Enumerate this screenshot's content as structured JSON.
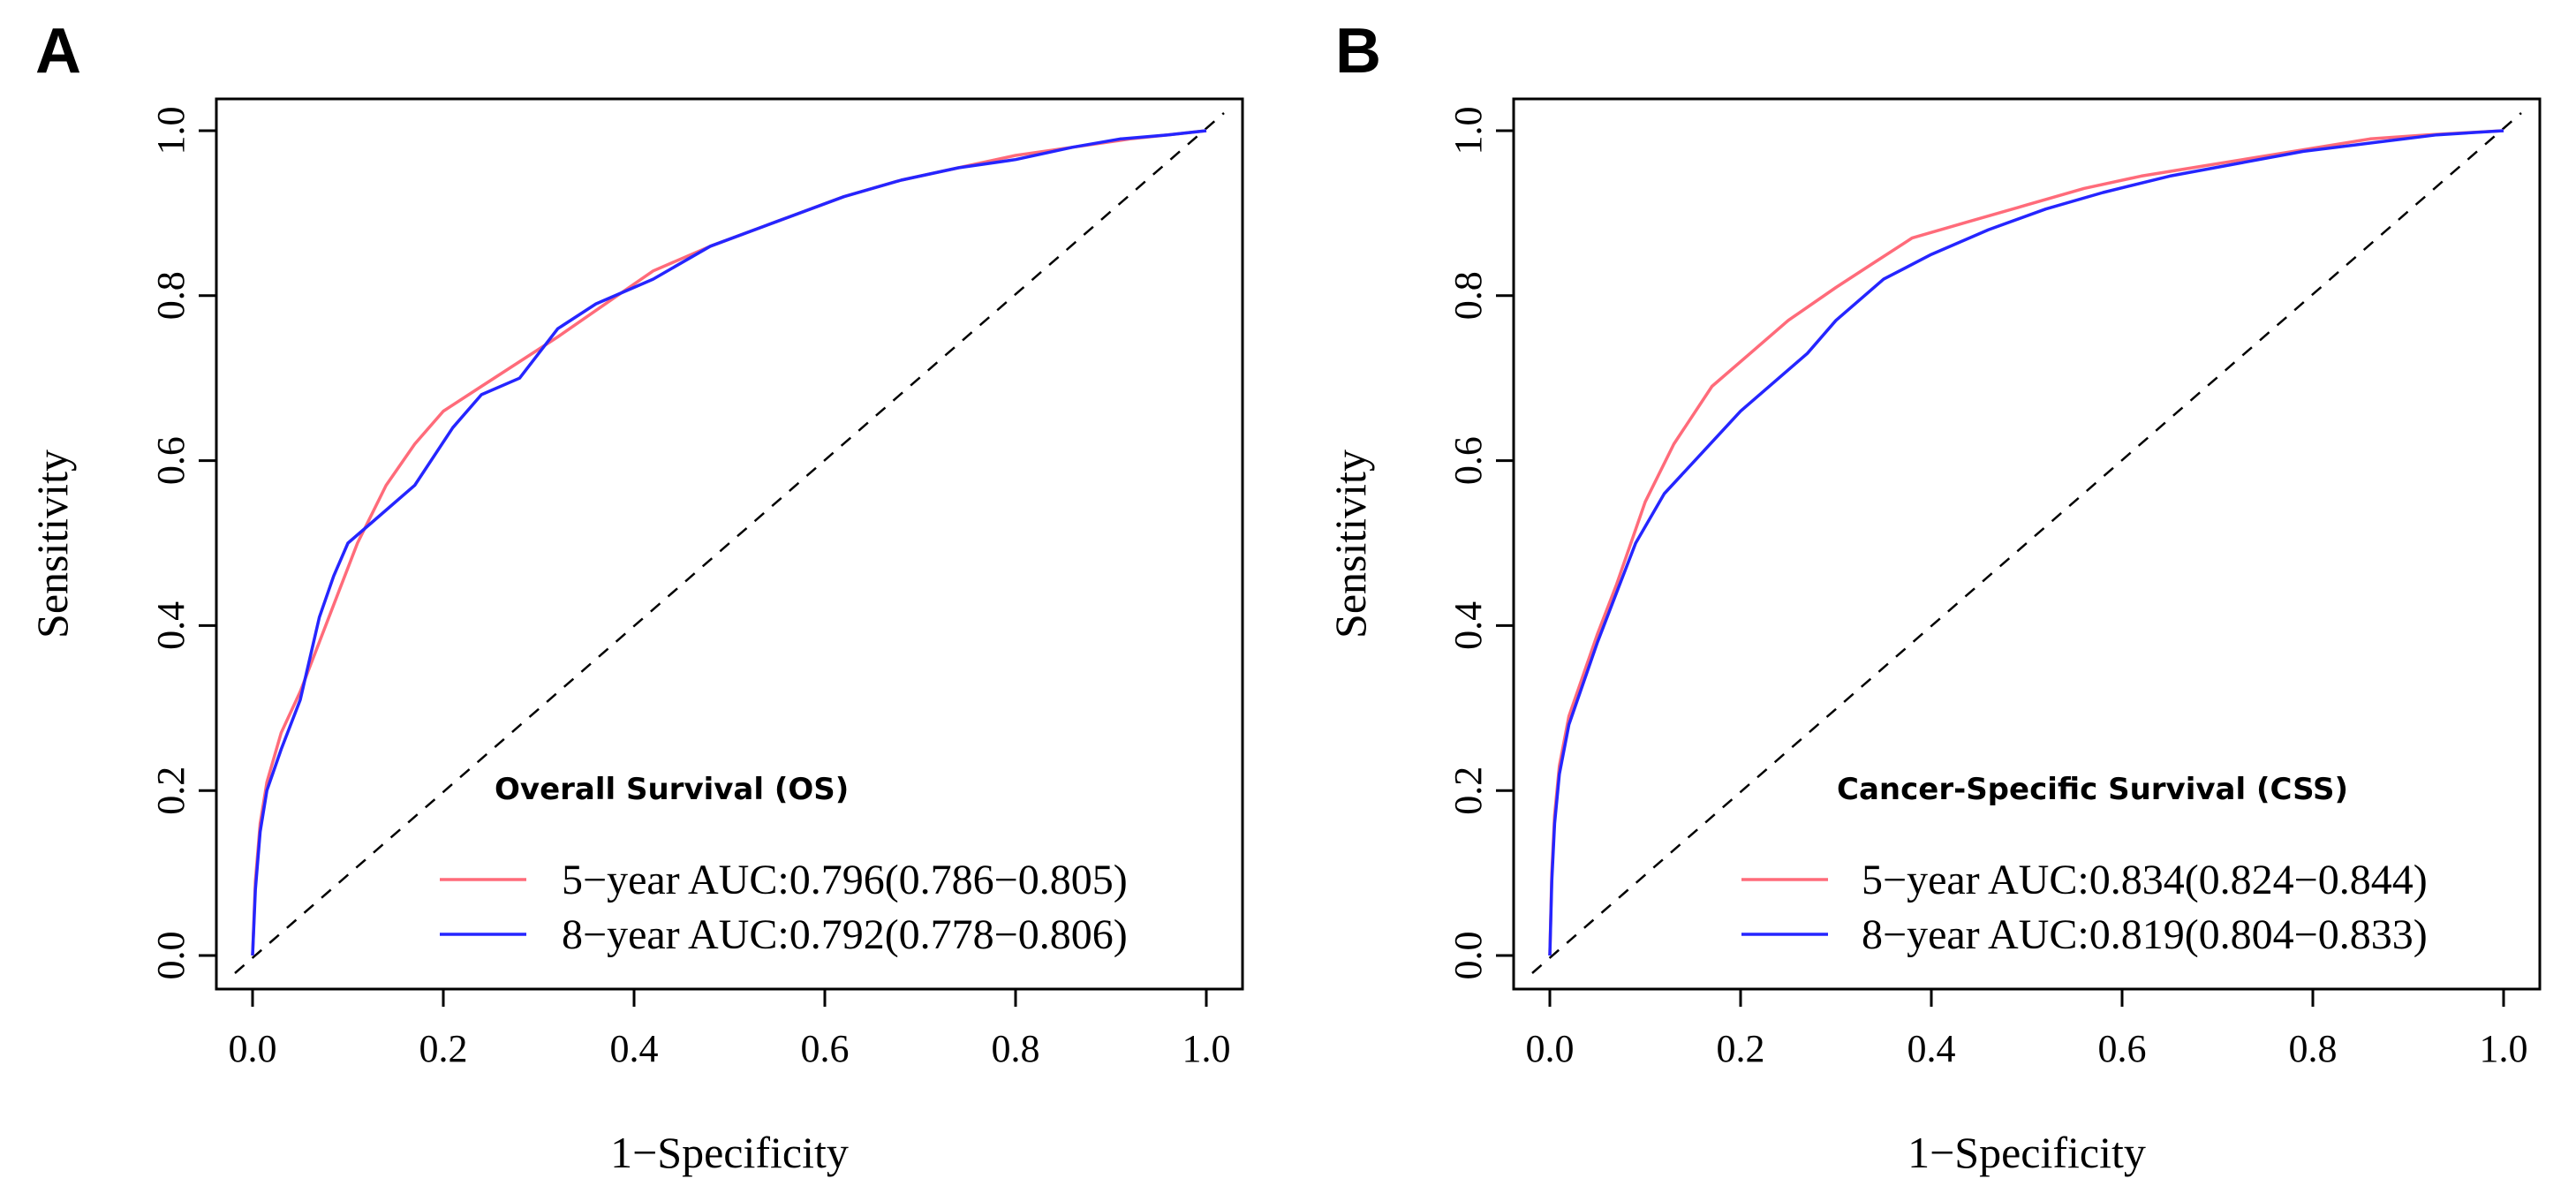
{
  "chart_data": [
    {
      "type": "line",
      "panel_label": "A",
      "xlabel": "1−Specificity",
      "ylabel": "Sensitivity",
      "xlim": [
        0,
        1
      ],
      "ylim": [
        0,
        1
      ],
      "x_ticks": [
        "0.0",
        "0.2",
        "0.4",
        "0.6",
        "0.8",
        "1.0"
      ],
      "y_ticks": [
        "0.0",
        "0.2",
        "0.4",
        "0.6",
        "0.8",
        "1.0"
      ],
      "legend_title": "Overall Survival (OS)",
      "legend_position": "bottom-right",
      "reference_line": "diagonal dashed",
      "series": [
        {
          "name": "5−year AUC:0.796(0.786−0.805)",
          "color": "#ff6b7a",
          "x": [
            0,
            0.003,
            0.008,
            0.015,
            0.03,
            0.05,
            0.07,
            0.09,
            0.11,
            0.14,
            0.17,
            0.2,
            0.24,
            0.28,
            0.32,
            0.37,
            0.42,
            0.48,
            0.55,
            0.62,
            0.68,
            0.74,
            0.8,
            0.86,
            0.92,
            0.96,
            1.0
          ],
          "y": [
            0,
            0.09,
            0.16,
            0.21,
            0.27,
            0.32,
            0.38,
            0.44,
            0.5,
            0.57,
            0.62,
            0.66,
            0.69,
            0.72,
            0.75,
            0.79,
            0.83,
            0.86,
            0.89,
            0.92,
            0.94,
            0.955,
            0.97,
            0.98,
            0.99,
            0.995,
            1.0
          ]
        },
        {
          "name": "8−year AUC:0.792(0.778−0.806)",
          "color": "#2525ff",
          "x": [
            0,
            0.003,
            0.008,
            0.015,
            0.03,
            0.05,
            0.06,
            0.07,
            0.085,
            0.1,
            0.13,
            0.17,
            0.21,
            0.24,
            0.28,
            0.3,
            0.32,
            0.36,
            0.42,
            0.48,
            0.55,
            0.62,
            0.68,
            0.74,
            0.8,
            0.86,
            0.91,
            0.96,
            1.0
          ],
          "y": [
            0,
            0.08,
            0.15,
            0.2,
            0.25,
            0.31,
            0.36,
            0.41,
            0.46,
            0.5,
            0.53,
            0.57,
            0.64,
            0.68,
            0.7,
            0.73,
            0.76,
            0.79,
            0.82,
            0.86,
            0.89,
            0.92,
            0.94,
            0.955,
            0.965,
            0.98,
            0.99,
            0.995,
            1.0
          ]
        }
      ]
    },
    {
      "type": "line",
      "panel_label": "B",
      "xlabel": "1−Specificity",
      "ylabel": "Sensitivity",
      "xlim": [
        0,
        1
      ],
      "ylim": [
        0,
        1
      ],
      "x_ticks": [
        "0.0",
        "0.2",
        "0.4",
        "0.6",
        "0.8",
        "1.0"
      ],
      "y_ticks": [
        "0.0",
        "0.2",
        "0.4",
        "0.6",
        "0.8",
        "1.0"
      ],
      "legend_title": "Cancer-Specific Survival (CSS)",
      "legend_position": "bottom-right",
      "reference_line": "diagonal dashed",
      "series": [
        {
          "name": "5−year AUC:0.834(0.824−0.844)",
          "color": "#ff6b7a",
          "x": [
            0,
            0.002,
            0.005,
            0.01,
            0.02,
            0.035,
            0.05,
            0.07,
            0.1,
            0.13,
            0.17,
            0.21,
            0.25,
            0.3,
            0.34,
            0.38,
            0.44,
            0.5,
            0.56,
            0.62,
            0.7,
            0.78,
            0.86,
            0.92,
            1.0
          ],
          "y": [
            0,
            0.1,
            0.17,
            0.23,
            0.29,
            0.34,
            0.39,
            0.45,
            0.55,
            0.62,
            0.69,
            0.73,
            0.77,
            0.81,
            0.84,
            0.87,
            0.89,
            0.91,
            0.93,
            0.945,
            0.96,
            0.975,
            0.99,
            0.995,
            1.0
          ]
        },
        {
          "name": "8−year AUC:0.819(0.804−0.833)",
          "color": "#2525ff",
          "x": [
            0,
            0.002,
            0.005,
            0.01,
            0.02,
            0.035,
            0.05,
            0.07,
            0.09,
            0.12,
            0.16,
            0.2,
            0.24,
            0.27,
            0.3,
            0.35,
            0.4,
            0.46,
            0.52,
            0.58,
            0.65,
            0.72,
            0.79,
            0.86,
            0.93,
            1.0
          ],
          "y": [
            0,
            0.09,
            0.16,
            0.22,
            0.28,
            0.33,
            0.38,
            0.44,
            0.5,
            0.56,
            0.61,
            0.66,
            0.7,
            0.73,
            0.77,
            0.82,
            0.85,
            0.88,
            0.905,
            0.925,
            0.945,
            0.96,
            0.975,
            0.985,
            0.995,
            1.0
          ]
        }
      ]
    }
  ]
}
